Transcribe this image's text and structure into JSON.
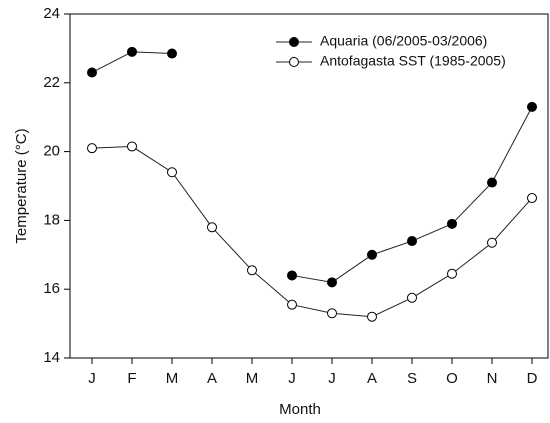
{
  "chart_data": {
    "type": "line",
    "x_label": "Month",
    "y_label": "Temperature (°C)",
    "categories": [
      "J",
      "F",
      "M",
      "A",
      "M",
      "J",
      "J",
      "A",
      "S",
      "O",
      "N",
      "D"
    ],
    "series": [
      {
        "name": "Aquaria (06/2005-03/2006)",
        "color": "#222222",
        "marker_fill": "#000000",
        "values": [
          22.3,
          22.9,
          22.85,
          null,
          null,
          16.4,
          16.2,
          17.0,
          17.4,
          17.9,
          19.1,
          21.3
        ]
      },
      {
        "name": "Antofagasta SST (1985-2005)",
        "color": "#222222",
        "marker_fill": "#ffffff",
        "values": [
          20.1,
          20.15,
          19.4,
          17.8,
          16.55,
          15.55,
          15.3,
          15.2,
          15.75,
          16.45,
          17.35,
          18.65
        ]
      }
    ],
    "ylim": [
      14,
      24
    ],
    "yticks": [
      14,
      16,
      18,
      20,
      22,
      24
    ],
    "legend": "upper right",
    "grid": false
  }
}
